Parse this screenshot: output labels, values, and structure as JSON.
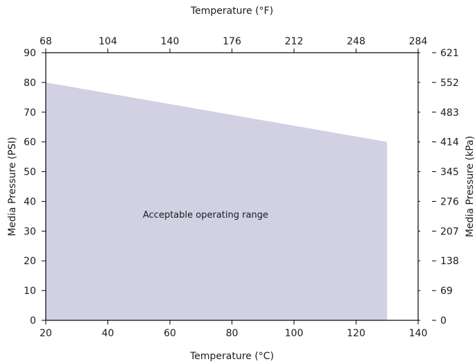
{
  "chart_data": {
    "type": "area",
    "title": "",
    "xlabel": "Temperature (°C)",
    "ylabel": "Media Pressure (PSI)",
    "x2label": "Temperature (°F)",
    "y2label": "Media Pressure (kPa)",
    "xlim": [
      20,
      140
    ],
    "ylim": [
      0,
      90
    ],
    "x_ticks": [
      20,
      40,
      60,
      80,
      100,
      120,
      140
    ],
    "y_ticks": [
      0,
      10,
      20,
      30,
      40,
      50,
      60,
      70,
      80,
      90
    ],
    "x2_ticks": [
      68,
      104,
      140,
      176,
      212,
      248,
      284
    ],
    "y2_ticks": [
      0,
      69,
      138,
      207,
      276,
      345,
      414,
      483,
      552,
      621
    ],
    "grid": false,
    "series": [
      {
        "x": [
          20,
          130
        ],
        "y": [
          80,
          60
        ]
      }
    ],
    "annotation": {
      "text": "Acceptable operating range"
    },
    "fill_color": "#d2d1e4"
  }
}
